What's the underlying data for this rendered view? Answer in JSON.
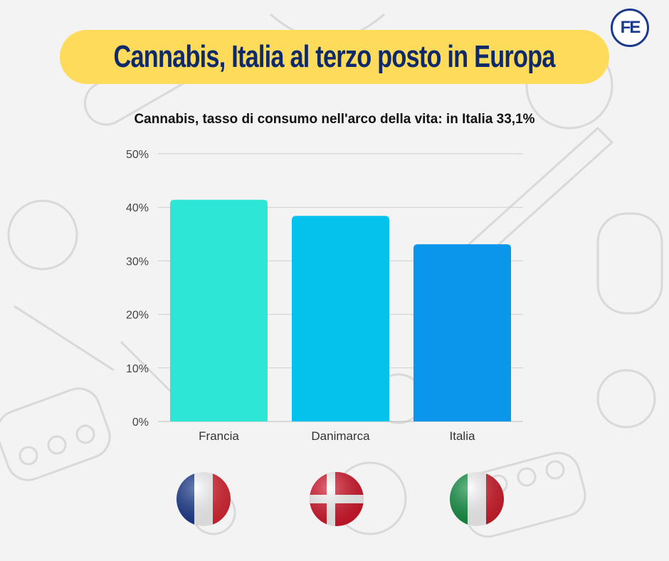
{
  "header": {
    "title": "Cannabis, Italia al terzo posto in Europa",
    "logo_text": "FE"
  },
  "colors": {
    "title_bg": "#fedb5a",
    "title_text": "#0e2a6b",
    "logo": "#1c3a8c",
    "gridline": "#cfcfcf"
  },
  "flags": [
    {
      "country": "Francia",
      "icon": "france-flag-icon"
    },
    {
      "country": "Danimarca",
      "icon": "denmark-flag-icon"
    },
    {
      "country": "Italia",
      "icon": "italy-flag-icon"
    }
  ],
  "chart_data": {
    "type": "bar",
    "title": "Cannabis, tasso di consumo nell'arco della vita: in Italia 33,1%",
    "categories": [
      "Francia",
      "Danimarca",
      "Italia"
    ],
    "values": [
      41.4,
      38.4,
      33.1
    ],
    "bar_colors": [
      "#2ee6d6",
      "#04c2ec",
      "#0a96ea"
    ],
    "ylim": [
      0,
      50
    ],
    "yticks": [
      0,
      10,
      20,
      30,
      40,
      50
    ],
    "ytick_labels": [
      "0%",
      "10%",
      "20%",
      "30%",
      "40%",
      "50%"
    ],
    "grid": true,
    "xlabel": "",
    "ylabel": ""
  }
}
